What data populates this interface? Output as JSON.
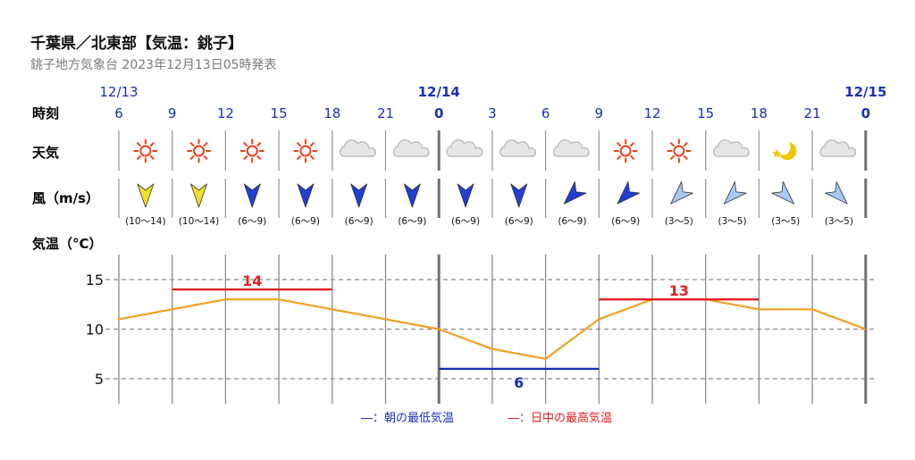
{
  "header": {
    "title": "千葉県／北東部【気温：銚子】",
    "subtitle": "銚子地方気象台 2023年12月13日05時発表"
  },
  "rows": {
    "time_label": "時刻",
    "weather_label": "天気",
    "wind_label": "風（m/s）",
    "temp_label": "気温（°C）"
  },
  "dates": [
    {
      "label": "12/13",
      "index": 0,
      "bold": false
    },
    {
      "label": "12/14",
      "index": 6,
      "bold": true
    },
    {
      "label": "12/15",
      "index": 14,
      "bold": true
    }
  ],
  "hours": [
    "6",
    "9",
    "12",
    "15",
    "18",
    "21",
    "0",
    "3",
    "6",
    "9",
    "12",
    "15",
    "18",
    "21",
    "0"
  ],
  "weather": [
    "sun-icon",
    "sun-icon",
    "sun-icon",
    "sun-icon",
    "cloud-icon",
    "cloud-icon",
    "cloud-icon",
    "cloud-icon",
    "cloud-icon",
    "sun-icon",
    "sun-icon",
    "cloud-icon",
    "moon-icon",
    "cloud-icon"
  ],
  "wind": [
    {
      "speed": "(10〜14)",
      "dir": "north",
      "color": "#f2e12a"
    },
    {
      "speed": "(10〜14)",
      "dir": "north",
      "color": "#f2e12a"
    },
    {
      "speed": "(6〜9)",
      "dir": "north",
      "color": "#1f3fd6"
    },
    {
      "speed": "(6〜9)",
      "dir": "north",
      "color": "#1f3fd6"
    },
    {
      "speed": "(6〜9)",
      "dir": "north",
      "color": "#1f3fd6"
    },
    {
      "speed": "(6〜9)",
      "dir": "north",
      "color": "#1f3fd6"
    },
    {
      "speed": "(6〜9)",
      "dir": "north",
      "color": "#1f3fd6"
    },
    {
      "speed": "(6〜9)",
      "dir": "north",
      "color": "#1f3fd6"
    },
    {
      "speed": "(6〜9)",
      "dir": "north-east",
      "color": "#1f3fd6"
    },
    {
      "speed": "(6〜9)",
      "dir": "north-east",
      "color": "#1f3fd6"
    },
    {
      "speed": "(3〜5)",
      "dir": "north-east",
      "color": "#a9c8f2"
    },
    {
      "speed": "(3〜5)",
      "dir": "north-east",
      "color": "#a9c8f2"
    },
    {
      "speed": "(3〜5)",
      "dir": "north-west",
      "color": "#a9c8f2"
    },
    {
      "speed": "(3〜5)",
      "dir": "north-west",
      "color": "#a9c8f2"
    }
  ],
  "colors": {
    "date": "#1a2fb8",
    "temperature_line": "#f0a020",
    "max_temp": "#e02020",
    "min_temp": "#1a2fb8",
    "sun": "#e8401c",
    "cloud": "#bfbfbf",
    "moon": "#f2c400"
  },
  "chart_data": {
    "type": "line",
    "title": "",
    "xlabel": "時刻",
    "ylabel": "気温（°C）",
    "x": [
      "12/13 6",
      "9",
      "12",
      "15",
      "18",
      "21",
      "12/14 0",
      "3",
      "6",
      "9",
      "12",
      "15",
      "18",
      "21",
      "12/15 0"
    ],
    "series": [
      {
        "values": [
          11,
          12,
          13,
          13,
          12,
          11,
          10,
          8,
          7,
          11,
          13,
          13,
          12,
          12,
          10
        ]
      }
    ],
    "yticks": [
      5,
      10,
      15
    ],
    "ylim": [
      2.5,
      18
    ],
    "grid": true,
    "annotations": [
      {
        "kind": "max",
        "label": "14",
        "value": 14,
        "from": 1,
        "to": 4
      },
      {
        "kind": "min",
        "label": "6",
        "value": 6,
        "from": 6,
        "to": 9
      },
      {
        "kind": "max",
        "label": "13",
        "value": 13,
        "from": 9,
        "to": 12
      }
    ],
    "legend": [
      {
        "label": "―：朝の最低気温",
        "color": "#1a2fb8"
      },
      {
        "label": "―：日中の最高気温",
        "color": "#e02020"
      }
    ],
    "legend_position": "bottom-center"
  }
}
